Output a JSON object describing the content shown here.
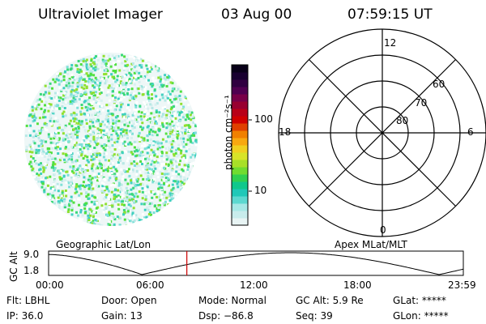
{
  "header": {
    "instrument": "Ultraviolet Imager",
    "date": "03 Aug 00",
    "time": "07:59:15  UT"
  },
  "colorbar": {
    "unit_label": "photon cm⁻²s⁻¹",
    "tick_100": "100",
    "tick_10": "10",
    "colors": [
      "#e8f4f4",
      "#c8ecec",
      "#a6e8e6",
      "#5cd8d0",
      "#20c8b8",
      "#10c88c",
      "#30d050",
      "#70dc30",
      "#a8e028",
      "#d8e428",
      "#f0d020",
      "#f8a810",
      "#f08000",
      "#e04000",
      "#d00000",
      "#b80018",
      "#980030",
      "#780048",
      "#500050",
      "#300040",
      "#180030",
      "#080018"
    ]
  },
  "polar_plot": {
    "labels": {
      "mlt_top": "12",
      "mlt_left": "18",
      "mlt_right": "6",
      "mlt_bottom": "0",
      "lat_60": "60",
      "lat_70": "70",
      "lat_80": "80"
    }
  },
  "map_labels": {
    "left": "Geographic Lat/Lon",
    "right": "Apex MLat/MLT"
  },
  "altitude_strip": {
    "ylabel": "GC Alt",
    "y_max": "9.0",
    "y_min": "1.8",
    "x_ticks": [
      "00:00",
      "06:00",
      "12:00",
      "18:00",
      "23:59"
    ],
    "current_time_hours": 8.0,
    "current_marker_color": "#cc0000"
  },
  "info": {
    "flt": "Flt:  LBHL",
    "ip": "IP:  36.0",
    "door": "Door:  Open",
    "gain": "Gain:  13",
    "mode": "Mode:  Normal",
    "dsp": "Dsp:   −86.8",
    "gcalt": "GC Alt:  5.9 Re",
    "seq": "Seq:  39",
    "glat": "GLat:  *****",
    "glon": "GLon:  *****"
  }
}
